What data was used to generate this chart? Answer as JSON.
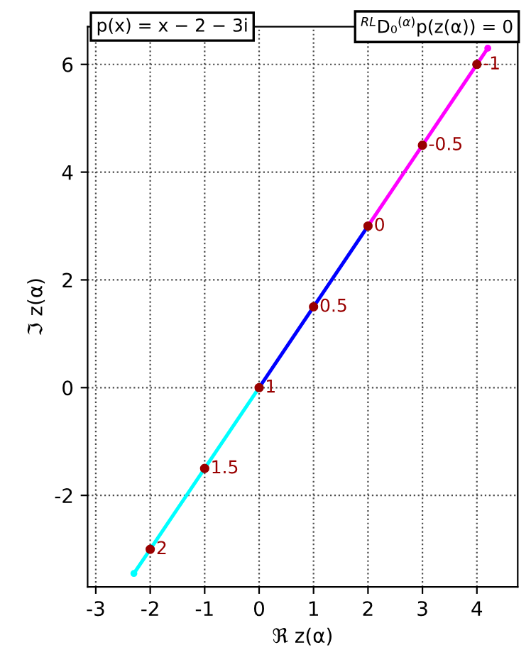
{
  "chart_data": {
    "type": "line",
    "series": [
      {
        "color": "#00ffff",
        "x": [
          -2.3,
          -2,
          -1,
          0
        ],
        "values": [
          -3.45,
          -3,
          -1.5,
          0
        ]
      },
      {
        "color": "#0000ff",
        "x": [
          0,
          1,
          2
        ],
        "values": [
          0,
          1.5,
          3
        ]
      },
      {
        "color": "#ff00ff",
        "x": [
          2,
          3,
          4,
          4.2
        ],
        "values": [
          3,
          4.5,
          6,
          6.3
        ]
      },
      {
        "type": "scatter",
        "color": "#990000",
        "x": [
          -2,
          -1,
          0,
          1,
          2,
          3,
          4
        ],
        "values": [
          -3,
          -1.5,
          0,
          1.5,
          3,
          4.5,
          6
        ]
      }
    ],
    "xlim": [
      -3.15,
      4.75
    ],
    "ylim": [
      -3.7,
      6.7
    ],
    "xticks": [
      -3,
      -2,
      -1,
      0,
      1,
      2,
      3,
      4
    ],
    "yticks": [
      -2,
      0,
      2,
      4,
      6
    ],
    "xlabel": "ℜ z(α)",
    "ylabel": "ℑ z(α)",
    "grid": true,
    "marker": "circle",
    "line_style": "solid",
    "annotations": [
      "p(x) = x − 2 − 3i",
      "$^{RL}$D₀$^{(α)}$p(z(α)) = 0",
      {
        "text": "2",
        "x": -2,
        "y": -3
      },
      {
        "text": "1.5",
        "x": -1,
        "y": -1.5
      },
      {
        "text": "1",
        "x": 0,
        "y": 0
      },
      {
        "text": "0.5",
        "x": 1,
        "y": 1.5
      },
      {
        "text": "0",
        "x": 2,
        "y": 3
      },
      {
        "text": "-0.5",
        "x": 3,
        "y": 4.5
      },
      {
        "text": "-1",
        "x": 4,
        "y": 6
      }
    ]
  }
}
